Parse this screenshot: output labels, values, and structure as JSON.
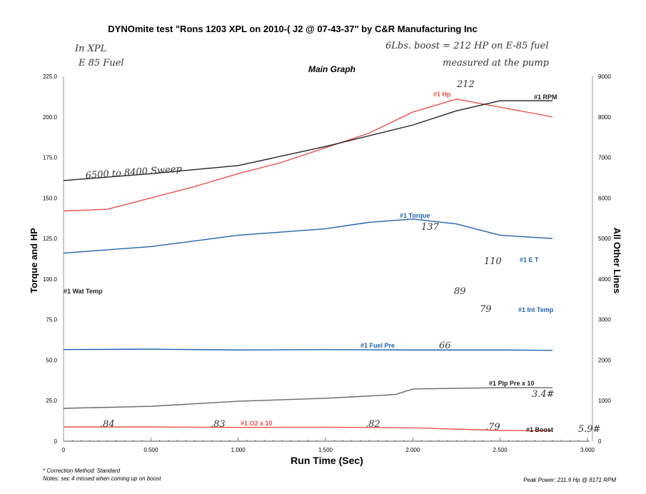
{
  "chart_data": {
    "type": "line",
    "title": "DYNOmite test \"Rons 1203  XPL on 2010-(   J2 @ 07-43-37\" by C&R Manufacturing Inc",
    "subtitle": "Main Graph",
    "xlabel": "Run Time (Sec)",
    "ylabel": "Torque and HP",
    "y2label": "All Other Lines",
    "xlim": [
      0,
      3.0
    ],
    "ylim": [
      0,
      225
    ],
    "y2lim": [
      0,
      9000
    ],
    "xticks": [
      "0",
      "0.500",
      "1.000",
      "1.500",
      "2.000",
      "2.500",
      "3.000"
    ],
    "yticks": [
      "0",
      "25.0",
      "50.0",
      "75.0",
      "100.0",
      "125.0",
      "150.0",
      "175.0",
      "200.0",
      "225.0"
    ],
    "y2ticks": [
      "0",
      "1000",
      "2000",
      "3000",
      "4000",
      "5000",
      "6000",
      "7000",
      "8000",
      "9000"
    ],
    "grid": false,
    "series": [
      {
        "name": "#1 Hp",
        "axis": "left",
        "color": "#e8534a",
        "x": [
          0,
          0.25,
          0.5,
          0.75,
          1.0,
          1.25,
          1.5,
          1.75,
          2.0,
          2.25,
          2.5,
          2.8
        ],
        "values": [
          142,
          143,
          150,
          157,
          165,
          172,
          181,
          190,
          203,
          211,
          206,
          200
        ]
      },
      {
        "name": "#1 RPM",
        "axis": "right",
        "color": "#222222",
        "x": [
          0,
          0.5,
          1.0,
          1.5,
          2.0,
          2.25,
          2.5,
          2.8
        ],
        "values": [
          6430,
          6600,
          6800,
          7270,
          7800,
          8150,
          8400,
          8400
        ]
      },
      {
        "name": "#1 Torque",
        "axis": "left",
        "color": "#1e63b0",
        "x": [
          0,
          0.5,
          1.0,
          1.5,
          1.75,
          2.0,
          2.25,
          2.5,
          2.8
        ],
        "values": [
          116,
          120,
          127,
          131,
          135,
          137,
          134,
          127,
          125
        ]
      },
      {
        "name": "#1 Fuel Pre",
        "axis": "right",
        "color": "#1e63b0",
        "x": [
          0,
          0.5,
          1.0,
          1.5,
          2.0,
          2.5,
          2.8
        ],
        "values": [
          2260,
          2270,
          2250,
          2260,
          2250,
          2250,
          2240
        ]
      },
      {
        "name": "#1 Pip Pre x 10",
        "axis": "right",
        "color": "#666666",
        "x": [
          0,
          0.5,
          1.0,
          1.5,
          1.9,
          2.0,
          2.5,
          2.8
        ],
        "values": [
          810,
          860,
          986,
          1057,
          1150,
          1286,
          1320,
          1320
        ]
      },
      {
        "name": "#1 O2 x 10",
        "axis": "right",
        "color": "#e8534a",
        "x": [
          0,
          0.5,
          1.0,
          1.5,
          2.0,
          2.5,
          2.8
        ],
        "values": [
          350,
          350,
          340,
          345,
          330,
          264,
          260
        ]
      }
    ],
    "labels_only": [
      "#1 E T",
      "#1 Wat Temp",
      "#1 Int Temp",
      "#1 Boost"
    ],
    "footer": {
      "correction": "* Correction Method: Standard",
      "notes": "Notes: sec 4   missed when coming up on boost",
      "peak": "Peak Power: 211.9 Hp @ 8171 RPM"
    },
    "handwritten": [
      "In XPL",
      "E 85 Fuel",
      "6Lbs. boost = 212 HP on E-85 fuel",
      "measured at the pump",
      "212",
      "6500 to 8400 Sweep",
      "137",
      "110",
      "89",
      "79",
      "66",
      "3.4#",
      ".84",
      ".83",
      ".82",
      ".79",
      "5.9#"
    ]
  }
}
